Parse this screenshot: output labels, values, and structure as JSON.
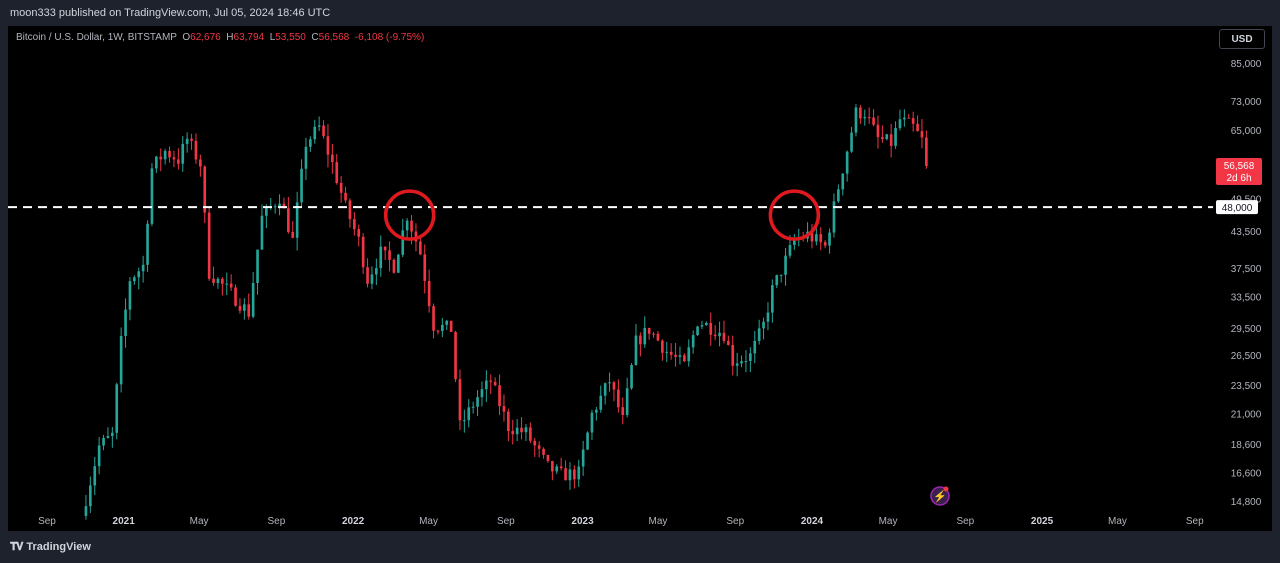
{
  "header": {
    "publish_text": "moon333 published on TradingView.com, Jul 05, 2024 18:46 UTC"
  },
  "legend": {
    "symbol": "Bitcoin / U.S. Dollar, 1W, BITSTAMP",
    "open_label": "O",
    "open": "62,676",
    "high_label": "H",
    "high": "63,794",
    "low_label": "L",
    "low": "53,550",
    "close_label": "C",
    "close": "56,568",
    "change": "-6,108 (-9.75%)"
  },
  "currency_button": "USD",
  "footer": {
    "logo_text": "TradingView"
  },
  "colors": {
    "up": "#26a69a",
    "down": "#f23645",
    "background": "#000000",
    "level_line": "#ffffff",
    "circle": "#e0191f"
  },
  "chart_data": {
    "type": "candlestick",
    "y_scale": "log",
    "ylim": [
      14000,
      95000
    ],
    "y_ticks": [
      "85,000",
      "73,000",
      "65,000",
      "49,500",
      "43,500",
      "37,500",
      "33,500",
      "29,500",
      "26,500",
      "23,500",
      "21,000",
      "18,600",
      "16,600",
      "14,800"
    ],
    "x_ticks": [
      {
        "label": "Sep",
        "date": "2020-09-01"
      },
      {
        "label": "2021",
        "date": "2021-01-01",
        "year": true
      },
      {
        "label": "May",
        "date": "2021-05-01"
      },
      {
        "label": "Sep",
        "date": "2021-09-01"
      },
      {
        "label": "2022",
        "date": "2022-01-01",
        "year": true
      },
      {
        "label": "May",
        "date": "2022-05-01"
      },
      {
        "label": "Sep",
        "date": "2022-09-01"
      },
      {
        "label": "2023",
        "date": "2023-01-01",
        "year": true
      },
      {
        "label": "May",
        "date": "2023-05-01"
      },
      {
        "label": "Sep",
        "date": "2023-09-01"
      },
      {
        "label": "2024",
        "date": "2024-01-01",
        "year": true
      },
      {
        "label": "May",
        "date": "2024-05-01"
      },
      {
        "label": "Sep",
        "date": "2024-09-01"
      },
      {
        "label": "2025",
        "date": "2025-01-01",
        "year": true
      },
      {
        "label": "May",
        "date": "2025-05-01"
      },
      {
        "label": "Sep",
        "date": "2025-09-01"
      }
    ],
    "x_range": [
      "2020-07-01",
      "2025-09-30"
    ],
    "price_path": [
      [
        "2020-10-26",
        14000
      ],
      [
        "2020-11-23",
        18500
      ],
      [
        "2020-12-14",
        19300
      ],
      [
        "2020-12-28",
        28000
      ],
      [
        "2021-01-11",
        36000
      ],
      [
        "2021-02-01",
        38000
      ],
      [
        "2021-02-15",
        56000
      ],
      [
        "2021-03-08",
        60000
      ],
      [
        "2021-03-29",
        58000
      ],
      [
        "2021-04-12",
        63000
      ],
      [
        "2021-05-03",
        57000
      ],
      [
        "2021-05-17",
        37000
      ],
      [
        "2021-06-21",
        34000
      ],
      [
        "2021-07-19",
        31500
      ],
      [
        "2021-08-09",
        46000
      ],
      [
        "2021-09-06",
        50000
      ],
      [
        "2021-09-27",
        42000
      ],
      [
        "2021-10-18",
        62000
      ],
      [
        "2021-11-08",
        66000
      ],
      [
        "2021-11-29",
        57000
      ],
      [
        "2021-12-20",
        48000
      ],
      [
        "2022-01-10",
        42000
      ],
      [
        "2022-01-24",
        36000
      ],
      [
        "2022-02-14",
        40000
      ],
      [
        "2022-03-07",
        38000
      ],
      [
        "2022-03-28",
        46500
      ],
      [
        "2022-04-18",
        40000
      ],
      [
        "2022-05-09",
        30000
      ],
      [
        "2022-06-06",
        29500
      ],
      [
        "2022-06-20",
        20000
      ],
      [
        "2022-07-18",
        22500
      ],
      [
        "2022-08-08",
        24000
      ],
      [
        "2022-09-05",
        20000
      ],
      [
        "2022-10-03",
        19500
      ],
      [
        "2022-11-07",
        17000
      ],
      [
        "2022-11-28",
        16500
      ],
      [
        "2022-12-26",
        16600
      ],
      [
        "2023-01-16",
        21000
      ],
      [
        "2023-02-13",
        24000
      ],
      [
        "2023-03-06",
        20500
      ],
      [
        "2023-03-27",
        28000
      ],
      [
        "2023-04-17",
        29500
      ],
      [
        "2023-05-15",
        27000
      ],
      [
        "2023-06-12",
        25500
      ],
      [
        "2023-07-03",
        30500
      ],
      [
        "2023-08-14",
        29000
      ],
      [
        "2023-08-28",
        26000
      ],
      [
        "2023-09-25",
        26500
      ],
      [
        "2023-10-16",
        30000
      ],
      [
        "2023-10-30",
        34500
      ],
      [
        "2023-12-04",
        42000
      ],
      [
        "2023-12-25",
        43000
      ],
      [
        "2024-01-22",
        41000
      ],
      [
        "2024-02-12",
        52000
      ],
      [
        "2024-03-04",
        65000
      ],
      [
        "2024-03-11",
        70000
      ],
      [
        "2024-03-25",
        70000
      ],
      [
        "2024-04-15",
        63000
      ],
      [
        "2024-05-06",
        62000
      ],
      [
        "2024-05-20",
        68000
      ],
      [
        "2024-06-10",
        66000
      ],
      [
        "2024-06-24",
        62600
      ],
      [
        "2024-07-01",
        56568
      ]
    ],
    "level_line": {
      "value": 48000,
      "label": "48,000"
    },
    "last_price": {
      "value": 56568,
      "label": "56,568",
      "countdown": "2d 6h"
    },
    "circles": [
      {
        "date": "2022-04-01",
        "value": 46500
      },
      {
        "date": "2023-12-04",
        "value": 46500
      }
    ],
    "grid": false
  }
}
